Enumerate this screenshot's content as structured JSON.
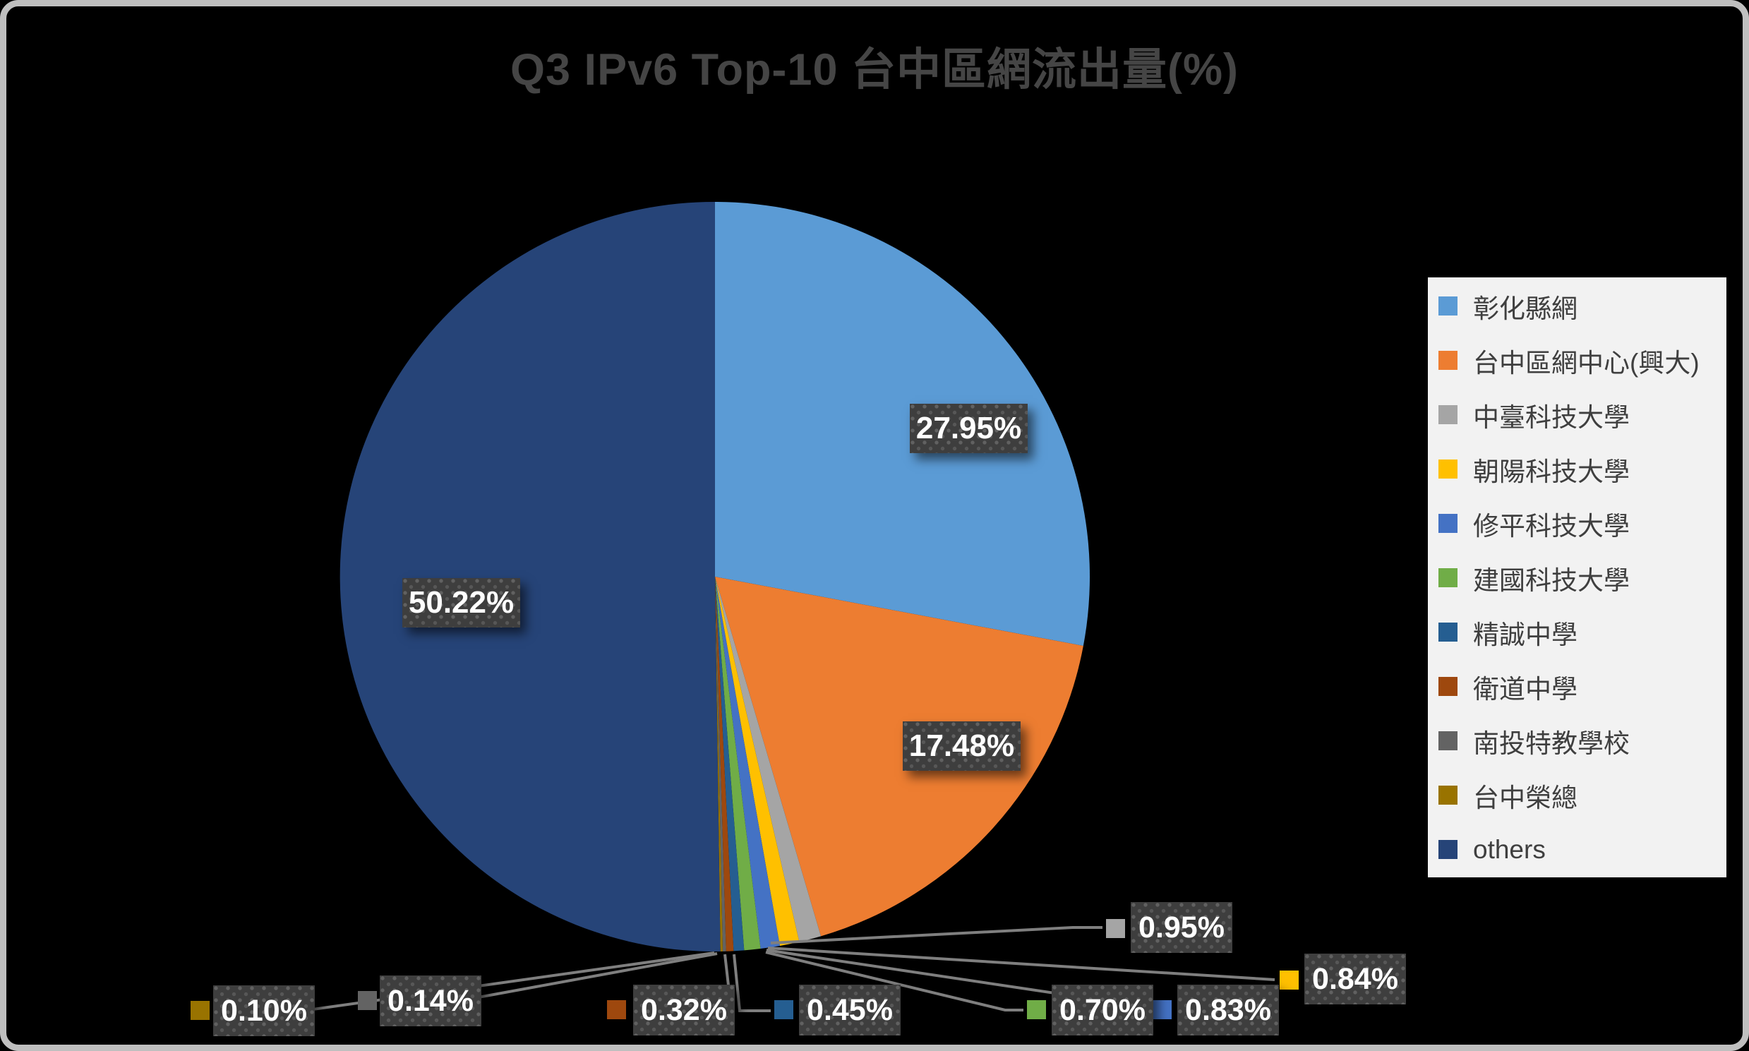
{
  "title": "Q3 IPv6 Top-10 台中區網流出量(%)",
  "colors": {
    "background": "#000000",
    "frame_border": "#BFBFBF",
    "title_text": "#454545",
    "legend_background": "#F2F2F2",
    "legend_text": "#3F3F3F",
    "label_box": "#3E3E3E",
    "label_box_dot": "#5E5E5E",
    "label_text": "#FFFFFF",
    "leader_line": "#7F7F7F"
  },
  "chart_data": {
    "type": "pie",
    "title": "Q3 IPv6 Top-10 台中區網流出量(%)",
    "start_angle_deg": 0,
    "direction": "clockwise",
    "legend_position": "right",
    "total_percent": 99.98,
    "series": [
      {
        "name": "彰化縣網",
        "value": 27.95,
        "label": "27.95%",
        "color": "#5B9BD5",
        "label_placement": "inside"
      },
      {
        "name": "台中區網中心(興大)",
        "value": 17.48,
        "label": "17.48%",
        "color": "#ED7D31",
        "label_placement": "inside"
      },
      {
        "name": "中臺科技大學",
        "value": 0.95,
        "label": "0.95%",
        "color": "#A5A5A5",
        "label_placement": "outside-callout"
      },
      {
        "name": "朝陽科技大學",
        "value": 0.84,
        "label": "0.84%",
        "color": "#FFC000",
        "label_placement": "outside-callout"
      },
      {
        "name": "修平科技大學",
        "value": 0.83,
        "label": "0.83%",
        "color": "#4472C4",
        "label_placement": "outside-callout"
      },
      {
        "name": "建國科技大學",
        "value": 0.7,
        "label": "0.70%",
        "color": "#70AD47",
        "label_placement": "outside-callout"
      },
      {
        "name": "精誠中學",
        "value": 0.45,
        "label": "0.45%",
        "color": "#255E91",
        "label_placement": "outside-callout"
      },
      {
        "name": "衛道中學",
        "value": 0.32,
        "label": "0.32%",
        "color": "#9E480E",
        "label_placement": "outside-callout"
      },
      {
        "name": "南投特教學校",
        "value": 0.14,
        "label": "0.14%",
        "color": "#636363",
        "label_placement": "outside-callout"
      },
      {
        "name": "台中榮總",
        "value": 0.1,
        "label": "0.10%",
        "color": "#997300",
        "label_placement": "outside-callout"
      },
      {
        "name": "others",
        "value": 50.22,
        "label": "50.22%",
        "color": "#264478",
        "label_placement": "inside"
      }
    ]
  }
}
